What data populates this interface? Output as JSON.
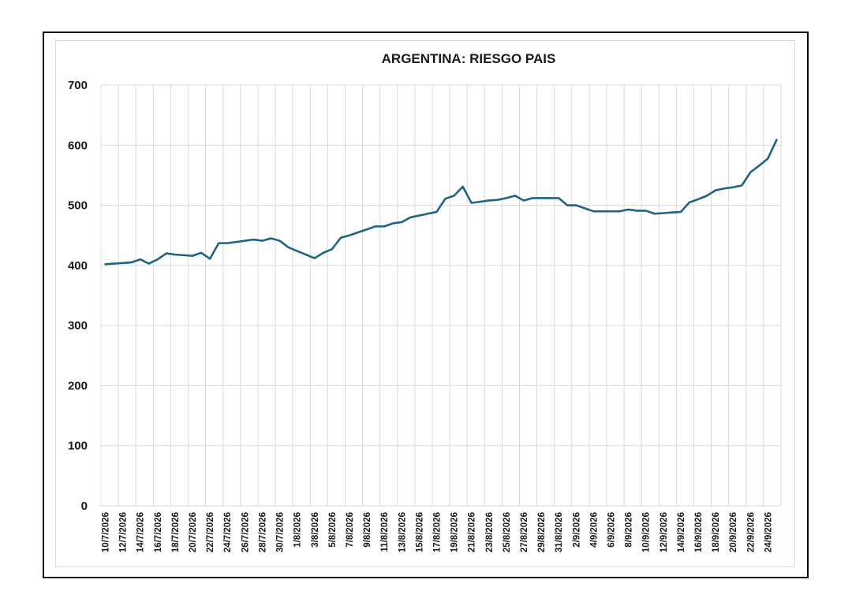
{
  "chart_data": {
    "type": "line",
    "title": "ARGENTINA:  RIESGO PAIS",
    "xlabel": "",
    "ylabel": "",
    "ylim": [
      0,
      700
    ],
    "yticks": [
      0,
      100,
      200,
      300,
      400,
      500,
      600,
      700
    ],
    "grid": true,
    "legend": "none",
    "line_color": "#1f6482",
    "x_tick_labels": [
      "10/7/2026",
      "12/7/2026",
      "14/7/2026",
      "16/7/2026",
      "18/7/2026",
      "20/7/2026",
      "22/7/2026",
      "24/7/2026",
      "26/7/2026",
      "28/7/2026",
      "30/7/2026",
      "1/8/2026",
      "3/8/2026",
      "5/8/2026",
      "7/8/2026",
      "9/8/2026",
      "11/8/2026",
      "13/8/2026",
      "15/8/2026",
      "17/8/2026",
      "19/8/2026",
      "21/8/2026",
      "23/8/2026",
      "25/8/2026",
      "27/8/2026",
      "29/8/2026",
      "31/8/2026",
      "2/9/2026",
      "4/9/2026",
      "6/9/2026",
      "8/9/2026",
      "10/9/2026",
      "12/9/2026",
      "14/9/2026",
      "16/9/2026",
      "18/9/2026",
      "20/9/2026",
      "22/9/2026",
      "24/9/2026"
    ],
    "x": [
      "10/7/2026",
      "11/7/2026",
      "12/7/2026",
      "13/7/2026",
      "14/7/2026",
      "15/7/2026",
      "16/7/2026",
      "17/7/2026",
      "18/7/2026",
      "19/7/2026",
      "20/7/2026",
      "21/7/2026",
      "22/7/2026",
      "23/7/2026",
      "24/7/2026",
      "25/7/2026",
      "26/7/2026",
      "27/7/2026",
      "28/7/2026",
      "29/7/2026",
      "30/7/2026",
      "31/7/2026",
      "1/8/2026",
      "2/8/2026",
      "3/8/2026",
      "4/8/2026",
      "5/8/2026",
      "6/8/2026",
      "7/8/2026",
      "8/8/2026",
      "9/8/2026",
      "10/8/2026",
      "11/8/2026",
      "12/8/2026",
      "13/8/2026",
      "14/8/2026",
      "15/8/2026",
      "16/8/2026",
      "17/8/2026",
      "18/8/2026",
      "19/8/2026",
      "20/8/2026",
      "21/8/2026",
      "22/8/2026",
      "23/8/2026",
      "24/8/2026",
      "25/8/2026",
      "26/8/2026",
      "27/8/2026",
      "28/8/2026",
      "29/8/2026",
      "30/8/2026",
      "31/8/2026",
      "1/9/2026",
      "2/9/2026",
      "3/9/2026",
      "4/9/2026",
      "5/9/2026",
      "6/9/2026",
      "7/9/2026",
      "8/9/2026",
      "9/9/2026",
      "10/9/2026",
      "11/9/2026",
      "12/9/2026",
      "13/9/2026",
      "14/9/2026",
      "15/9/2026",
      "16/9/2026",
      "17/9/2026",
      "18/9/2026",
      "19/9/2026",
      "20/9/2026",
      "21/9/2026",
      "22/9/2026",
      "23/9/2026",
      "24/9/2026",
      "25/9/2026"
    ],
    "values": [
      402,
      403,
      404,
      405,
      410,
      403,
      410,
      420,
      418,
      417,
      416,
      421,
      411,
      437,
      437,
      439,
      441,
      443,
      441,
      445,
      441,
      430,
      424,
      418,
      412,
      421,
      427,
      446,
      450,
      455,
      460,
      465,
      465,
      470,
      472,
      480,
      483,
      486,
      489,
      511,
      516,
      531,
      504,
      506,
      508,
      509,
      512,
      516,
      508,
      512,
      512,
      512,
      512,
      500,
      500,
      495,
      490,
      490,
      490,
      490,
      493,
      491,
      491,
      486,
      487,
      488,
      489,
      505,
      510,
      516,
      525,
      528,
      530,
      533,
      555,
      566,
      578,
      609
    ]
  }
}
